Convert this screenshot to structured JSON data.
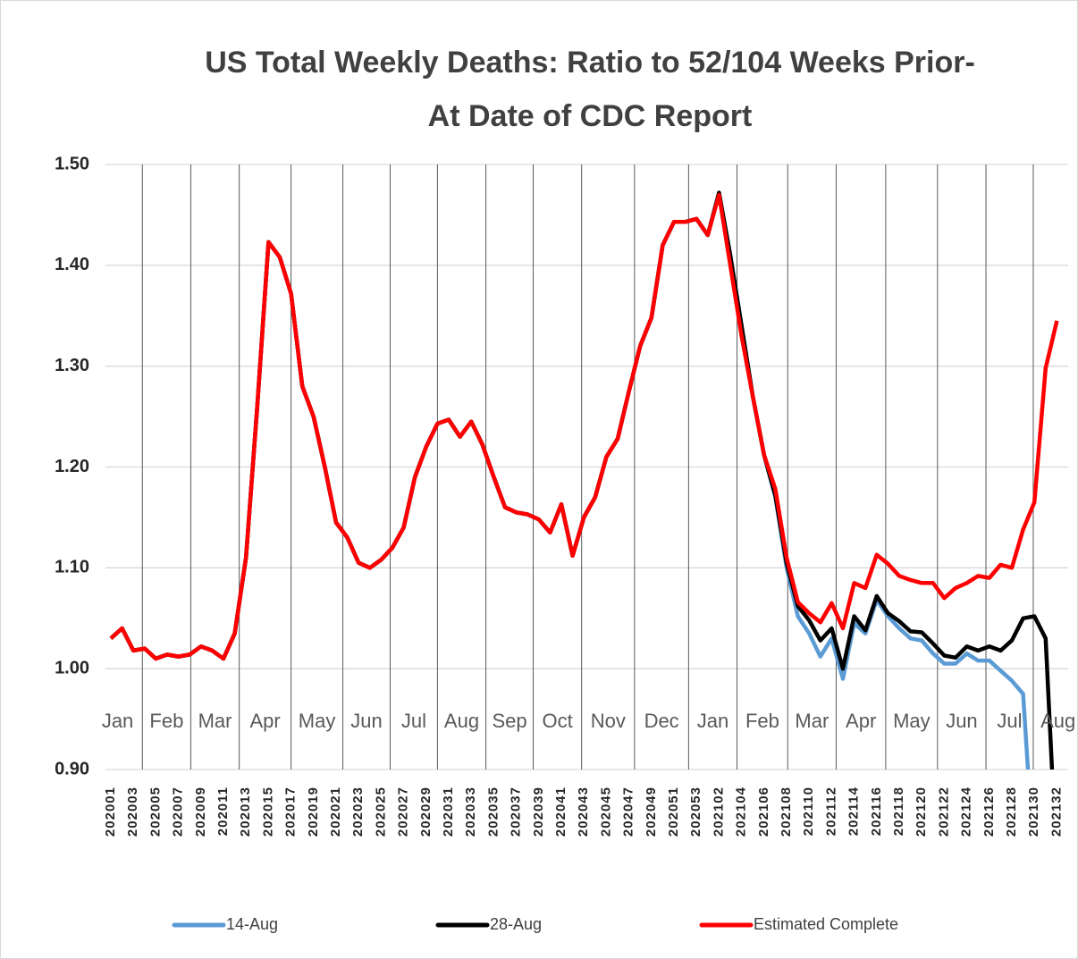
{
  "chart_data": {
    "type": "line",
    "title": [
      "US Total Weekly Deaths: Ratio to 52/104 Weeks Prior-",
      "At Date of CDC Report"
    ],
    "categories": [
      "202001",
      null,
      "202003",
      null,
      "202005",
      null,
      "202007",
      null,
      "202009",
      null,
      "202011",
      null,
      "202013",
      null,
      "202015",
      null,
      "202017",
      null,
      "202019",
      null,
      "202021",
      null,
      "202023",
      null,
      "202025",
      null,
      "202027",
      null,
      "202029",
      null,
      "202031",
      null,
      "202033",
      null,
      "202035",
      null,
      "202037",
      null,
      "202039",
      null,
      "202041",
      null,
      "202043",
      null,
      "202045",
      null,
      "202047",
      null,
      "202049",
      null,
      "202051",
      null,
      "202053",
      null,
      "202102",
      null,
      "202104",
      null,
      "202106",
      null,
      "202108",
      null,
      "202110",
      null,
      "202112",
      null,
      "202114",
      null,
      "202116",
      null,
      "202118",
      null,
      "202120",
      null,
      "202122",
      null,
      "202124",
      null,
      "202126",
      null,
      "202128",
      null,
      "202130",
      null,
      "202132"
    ],
    "series": [
      {
        "name": "14-Aug",
        "color": "#5b9bd5",
        "values": [
          1.03,
          1.04,
          1.018,
          1.02,
          1.01,
          1.014,
          1.012,
          1.014,
          1.022,
          1.018,
          1.01,
          1.035,
          1.11,
          1.26,
          1.423,
          1.408,
          1.372,
          1.28,
          1.25,
          1.2,
          1.145,
          1.13,
          1.105,
          1.1,
          1.108,
          1.12,
          1.14,
          1.19,
          1.22,
          1.243,
          1.247,
          1.23,
          1.245,
          1.222,
          1.19,
          1.16,
          1.155,
          1.153,
          1.148,
          1.135,
          1.163,
          1.112,
          1.15,
          1.17,
          1.21,
          1.228,
          1.275,
          1.32,
          1.348,
          1.42,
          1.443,
          1.443,
          1.446,
          1.43,
          1.472,
          1.41,
          1.34,
          1.27,
          1.212,
          1.17,
          1.1,
          1.052,
          1.035,
          1.012,
          1.03,
          0.99,
          1.045,
          1.035,
          1.068,
          1.052,
          1.04,
          1.03,
          1.028,
          1.015,
          1.005,
          1.005,
          1.015,
          1.008,
          1.008,
          0.998,
          0.988,
          0.975,
          0.8,
          null,
          null
        ]
      },
      {
        "name": "28-Aug",
        "color": "#000000",
        "values": [
          1.03,
          1.04,
          1.018,
          1.02,
          1.01,
          1.014,
          1.012,
          1.014,
          1.022,
          1.018,
          1.01,
          1.035,
          1.11,
          1.26,
          1.423,
          1.408,
          1.372,
          1.28,
          1.25,
          1.2,
          1.145,
          1.13,
          1.105,
          1.1,
          1.108,
          1.12,
          1.14,
          1.19,
          1.22,
          1.243,
          1.247,
          1.23,
          1.245,
          1.222,
          1.19,
          1.16,
          1.155,
          1.153,
          1.148,
          1.135,
          1.163,
          1.112,
          1.15,
          1.17,
          1.21,
          1.228,
          1.275,
          1.32,
          1.348,
          1.42,
          1.443,
          1.443,
          1.446,
          1.43,
          1.472,
          1.41,
          1.34,
          1.27,
          1.212,
          1.172,
          1.105,
          1.062,
          1.048,
          1.028,
          1.04,
          1.0,
          1.052,
          1.038,
          1.072,
          1.055,
          1.047,
          1.037,
          1.036,
          1.025,
          1.013,
          1.011,
          1.022,
          1.018,
          1.022,
          1.018,
          1.028,
          1.05,
          1.052,
          1.03,
          0.8
        ]
      },
      {
        "name": "Estimated Complete",
        "color": "#ff0000",
        "values": [
          1.03,
          1.04,
          1.018,
          1.02,
          1.01,
          1.014,
          1.012,
          1.014,
          1.022,
          1.018,
          1.01,
          1.035,
          1.11,
          1.26,
          1.423,
          1.408,
          1.372,
          1.28,
          1.25,
          1.2,
          1.145,
          1.13,
          1.105,
          1.1,
          1.108,
          1.12,
          1.14,
          1.19,
          1.22,
          1.243,
          1.247,
          1.23,
          1.245,
          1.222,
          1.19,
          1.16,
          1.155,
          1.153,
          1.148,
          1.135,
          1.163,
          1.112,
          1.15,
          1.17,
          1.21,
          1.228,
          1.275,
          1.32,
          1.348,
          1.42,
          1.443,
          1.443,
          1.446,
          1.43,
          1.47,
          1.4,
          1.33,
          1.27,
          1.212,
          1.178,
          1.11,
          1.066,
          1.055,
          1.046,
          1.065,
          1.04,
          1.085,
          1.08,
          1.113,
          1.104,
          1.092,
          1.088,
          1.085,
          1.085,
          1.07,
          1.08,
          1.085,
          1.092,
          1.09,
          1.103,
          1.1,
          1.138,
          1.165,
          1.298,
          1.345
        ]
      }
    ],
    "ylim": [
      0.9,
      1.5
    ],
    "yticks": [
      {
        "value": 0.9,
        "label": "0.90"
      },
      {
        "value": 1.0,
        "label": "1.00"
      },
      {
        "value": 1.1,
        "label": "1.10"
      },
      {
        "value": 1.2,
        "label": "1.20"
      },
      {
        "value": 1.3,
        "label": "1.30"
      },
      {
        "value": 1.4,
        "label": "1.40"
      },
      {
        "value": 1.5,
        "label": "1.50"
      }
    ],
    "grid": true,
    "month_lines": [
      2.8,
      7.1,
      11.4,
      16.0,
      20.6,
      24.8,
      29.0,
      33.3,
      37.5,
      41.8,
      46.5,
      51.3,
      55.6,
      60.1,
      64.4,
      68.8,
      73.4,
      77.7,
      81.9
    ],
    "month_labels": [
      "Jan",
      "Feb",
      "Mar",
      "Apr",
      "May",
      "Jun",
      "Jul",
      "Aug",
      "Sep",
      "Oct",
      "Nov",
      "Dec",
      "Jan",
      "Feb",
      "Mar",
      "Apr",
      "May",
      "Jun",
      "Jul",
      "Aug"
    ],
    "legend": "bottom"
  }
}
